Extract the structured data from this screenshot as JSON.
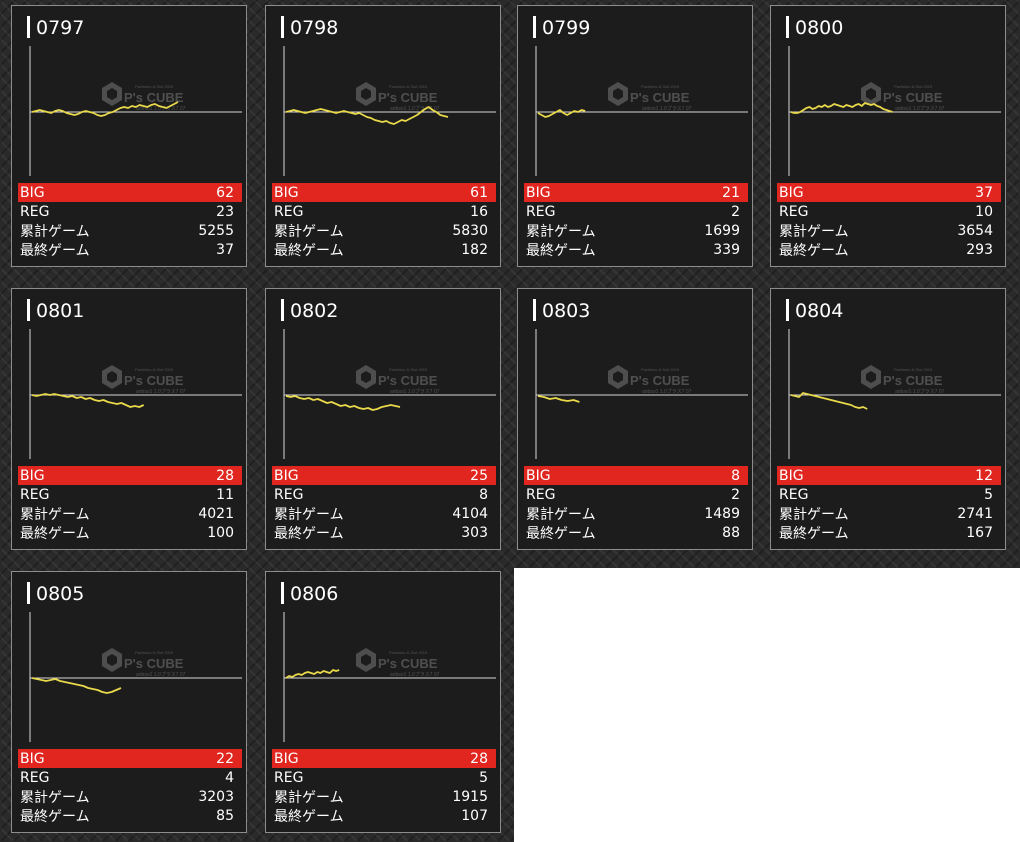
{
  "labels": {
    "big": "BIG",
    "reg": "REG",
    "total_games": "累計ゲーム",
    "last_games": "最終ゲーム"
  },
  "watermark": {
    "brand": "P's CUBE",
    "top_line": "Pachinko & Slot 2019",
    "sub_line": "anbso1 1.0プラス7 07"
  },
  "colors": {
    "big_bar": "#e0261f",
    "line": "#e8d84a",
    "card_bg": "#1c1c1c",
    "border": "#8d8d8d"
  },
  "machines": [
    {
      "id": "0797",
      "big": "62",
      "reg": "23",
      "total": "5255",
      "last": "37",
      "trend": [
        0,
        1,
        2,
        1,
        0,
        -1,
        1,
        2,
        1,
        -1,
        -2,
        -3,
        -2,
        0,
        1,
        0,
        -1,
        -3,
        -4,
        -3,
        -1,
        0,
        2,
        4,
        5,
        4,
        6,
        5,
        7,
        6,
        5,
        7,
        8,
        6,
        5,
        4,
        6,
        8,
        10
      ]
    },
    {
      "id": "0798",
      "big": "61",
      "reg": "16",
      "total": "5830",
      "last": "182",
      "trend": [
        0,
        1,
        2,
        1,
        0,
        -1,
        0,
        1,
        2,
        3,
        2,
        1,
        0,
        -1,
        0,
        1,
        0,
        -1,
        -2,
        -1,
        -3,
        -5,
        -6,
        -8,
        -9,
        -10,
        -9,
        -11,
        -12,
        -10,
        -8,
        -9,
        -7,
        -5,
        -3,
        0,
        3,
        5,
        2,
        0,
        -3,
        -4,
        -5
      ]
    },
    {
      "id": "0799",
      "big": "21",
      "reg": "2",
      "total": "1699",
      "last": "339",
      "trend": [
        -1,
        -3,
        -5,
        -4,
        -2,
        0,
        2,
        -1,
        -3,
        -1,
        1,
        0,
        2,
        1
      ]
    },
    {
      "id": "0800",
      "big": "37",
      "reg": "10",
      "total": "3654",
      "last": "293",
      "trend": [
        0,
        -1,
        -1,
        0,
        2,
        4,
        5,
        3,
        4,
        6,
        5,
        7,
        5,
        6,
        8,
        7,
        6,
        5,
        7,
        6,
        5,
        7,
        8,
        6,
        9,
        8,
        7,
        8,
        6,
        5,
        3,
        2,
        1,
        0
      ]
    },
    {
      "id": "0801",
      "big": "28",
      "reg": "11",
      "total": "4021",
      "last": "100",
      "trend": [
        0,
        -1,
        0,
        1,
        0,
        1,
        0,
        -1,
        -2,
        -1,
        -3,
        -2,
        -4,
        -3,
        -5,
        -6,
        -5,
        -7,
        -8,
        -9,
        -8,
        -10,
        -12,
        -11,
        -12,
        -10
      ]
    },
    {
      "id": "0802",
      "big": "25",
      "reg": "8",
      "total": "4104",
      "last": "303",
      "trend": [
        -1,
        -2,
        -1,
        -3,
        -4,
        -3,
        -5,
        -4,
        -6,
        -8,
        -7,
        -9,
        -11,
        -10,
        -12,
        -11,
        -13,
        -14,
        -13,
        -15,
        -14,
        -12,
        -11,
        -10,
        -11,
        -12
      ]
    },
    {
      "id": "0803",
      "big": "8",
      "reg": "2",
      "total": "1489",
      "last": "88",
      "trend": [
        -1,
        -2,
        -4,
        -3,
        -5,
        -6,
        -5,
        -7
      ]
    },
    {
      "id": "0804",
      "big": "12",
      "reg": "5",
      "total": "2741",
      "last": "167",
      "trend": [
        0,
        -1,
        -2,
        2,
        1,
        0,
        -1,
        -2,
        -3,
        -4,
        -5,
        -6,
        -7,
        -8,
        -9,
        -10,
        -12,
        -13,
        -12,
        -14
      ]
    },
    {
      "id": "0805",
      "big": "22",
      "reg": "4",
      "total": "3203",
      "last": "85",
      "trend": [
        0,
        -1,
        -2,
        -3,
        -2,
        -1,
        -3,
        -4,
        -5,
        -6,
        -7,
        -8,
        -10,
        -11,
        -12,
        -14,
        -15,
        -14,
        -12,
        -10
      ]
    },
    {
      "id": "0806",
      "big": "28",
      "reg": "5",
      "total": "1915",
      "last": "107",
      "trend": [
        0,
        2,
        1,
        3,
        4,
        3,
        5,
        6,
        5,
        4,
        6,
        5,
        7,
        6,
        5,
        8,
        7,
        8
      ]
    }
  ]
}
